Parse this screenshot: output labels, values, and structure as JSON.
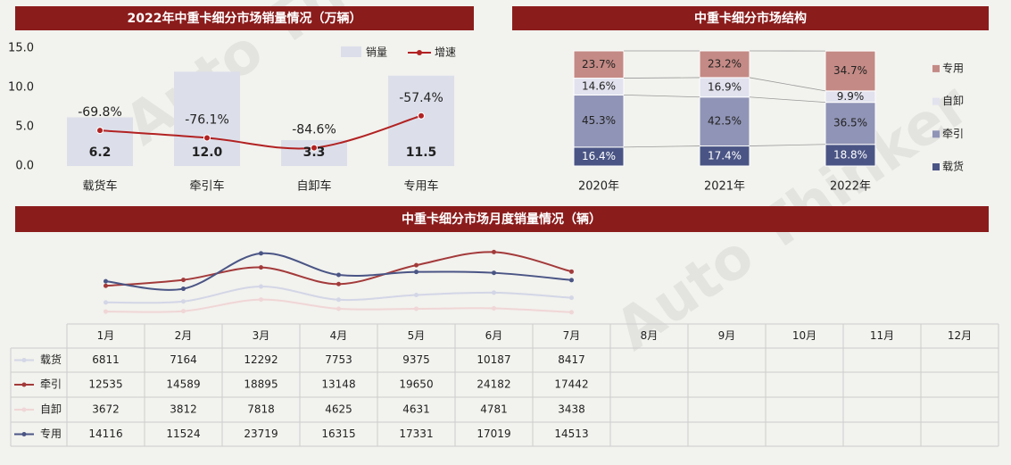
{
  "watermark": "Auto Thinker",
  "chart_data": [
    {
      "type": "bar_line",
      "title": "2022年中重卡细分市场销量情况（万辆）",
      "categories": [
        "载货车",
        "牵引车",
        "自卸车",
        "专用车"
      ],
      "series": [
        {
          "name": "销量",
          "color": "#dcdfea",
          "values": [
            6.2,
            12.0,
            3.3,
            11.5
          ],
          "value_labels": [
            "6.2",
            "12.0",
            "3.3",
            "11.5"
          ]
        },
        {
          "name": "增速",
          "color": "#b22222",
          "axis": "y2",
          "values": [
            -69.8,
            -76.1,
            -84.6,
            -57.4
          ],
          "value_labels": [
            "-69.8%",
            "-76.1%",
            "-84.6%",
            "-57.4%"
          ]
        }
      ],
      "ylim": [
        0,
        15
      ],
      "yticks": [
        {
          "value": 0,
          "label": "0.0"
        },
        {
          "value": 5,
          "label": "5.0"
        },
        {
          "value": 10,
          "label": "10.0"
        },
        {
          "value": 15,
          "label": "15.0"
        }
      ],
      "y2lim": [
        -100,
        0
      ]
    },
    {
      "type": "stacked_bar",
      "title": "中重卡细分市场结构",
      "categories": [
        "2020年",
        "2021年",
        "2022年"
      ],
      "series": [
        {
          "name": "载货",
          "color": "#4a5585",
          "values": [
            16.4,
            17.4,
            18.8
          ],
          "value_labels": [
            "16.4%",
            "17.4%",
            "18.8%"
          ]
        },
        {
          "name": "牵引",
          "color": "#9094b6",
          "values": [
            45.3,
            42.5,
            36.5
          ],
          "value_labels": [
            "45.3%",
            "42.5%",
            "36.5%"
          ]
        },
        {
          "name": "自卸",
          "color": "#e1e2ee",
          "values": [
            14.6,
            16.9,
            9.9
          ],
          "value_labels": [
            "14.6%",
            "16.9%",
            "9.9%"
          ]
        },
        {
          "name": "专用",
          "color": "#c48a85",
          "values": [
            23.7,
            23.2,
            34.7
          ],
          "value_labels": [
            "23.7%",
            "23.2%",
            "34.7%"
          ]
        }
      ],
      "ylim": [
        0,
        100
      ]
    },
    {
      "type": "line_table",
      "title": "中重卡细分市场月度销量情况（辆）",
      "categories": [
        "1月",
        "2月",
        "3月",
        "4月",
        "5月",
        "6月",
        "7月",
        "8月",
        "9月",
        "10月",
        "11月",
        "12月"
      ],
      "series": [
        {
          "name": "载货",
          "color": "#d3d6e6",
          "values": [
            6811,
            7164,
            12292,
            7753,
            9375,
            10187,
            8417,
            null,
            null,
            null,
            null,
            null
          ]
        },
        {
          "name": "牵引",
          "color": "#a33a3a",
          "values": [
            12535,
            14589,
            18895,
            13148,
            19650,
            24182,
            17442,
            null,
            null,
            null,
            null,
            null
          ]
        },
        {
          "name": "自卸",
          "color": "#f0d6d6",
          "values": [
            3672,
            3812,
            7818,
            4625,
            4631,
            4781,
            3438,
            null,
            null,
            null,
            null,
            null
          ]
        },
        {
          "name": "专用",
          "color": "#4a5585",
          "values": [
            14116,
            11524,
            23719,
            16315,
            17331,
            17019,
            14513,
            null,
            null,
            null,
            null,
            null
          ]
        }
      ],
      "ylim": [
        0,
        28000
      ]
    }
  ]
}
